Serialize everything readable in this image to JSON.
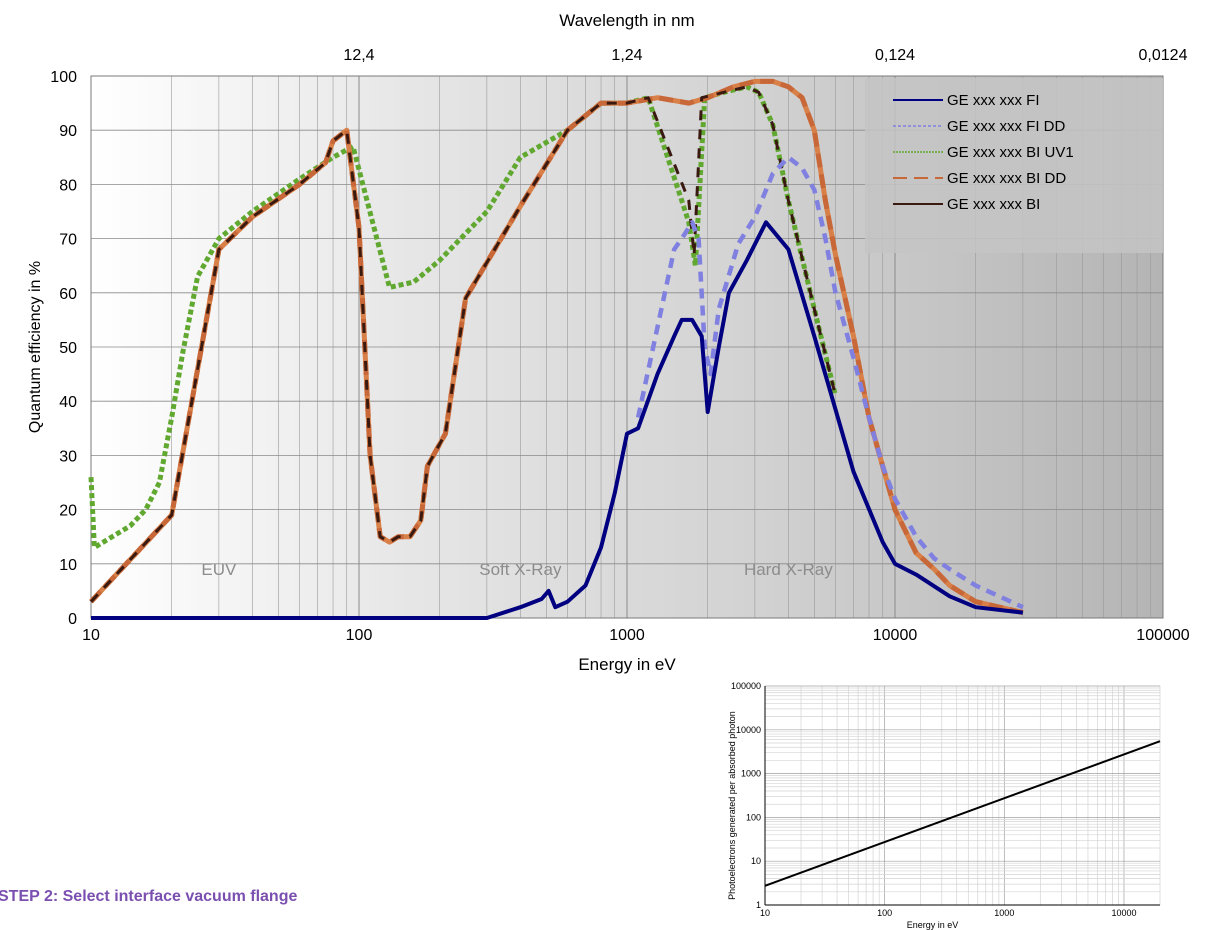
{
  "step_text": "STEP 2: Select interface vacuum flange",
  "chart_data": [
    {
      "type": "line",
      "title": "",
      "xlabel": "Energy in eV",
      "x2label": "Wavelength in nm",
      "ylabel": "Quantum efficiency  in %",
      "xscale": "log",
      "xlim": [
        10,
        100000
      ],
      "ylim": [
        0,
        100
      ],
      "xticks": [
        10,
        100,
        1000,
        10000,
        100000
      ],
      "xtick_labels": [
        "10",
        "100",
        "1000",
        "10000",
        "100000"
      ],
      "yticks": [
        0,
        10,
        20,
        30,
        40,
        50,
        60,
        70,
        80,
        90,
        100
      ],
      "ytick_labels": [
        "0",
        "10",
        "20",
        "30",
        "40",
        "50",
        "60",
        "70",
        "80",
        "90",
        "100"
      ],
      "x2ticks": [
        100,
        1000,
        10000,
        100000
      ],
      "x2tick_labels": [
        "12,4",
        "1,24",
        "0,124",
        "0,0124"
      ],
      "grid": true,
      "legend_position": "top-right",
      "regions": [
        {
          "label": "EUV",
          "x": 30
        },
        {
          "label": "Soft X-Ray",
          "x": 400
        },
        {
          "label": "Hard X-Ray",
          "x": 4000
        }
      ],
      "series": [
        {
          "name": "GE xxx xxx FI",
          "color": "#000080",
          "style": "solid",
          "points": [
            [
              10,
              0
            ],
            [
              300,
              0
            ],
            [
              400,
              2
            ],
            [
              480,
              3.5
            ],
            [
              510,
              5
            ],
            [
              540,
              2
            ],
            [
              600,
              3
            ],
            [
              700,
              6
            ],
            [
              800,
              13
            ],
            [
              900,
              23
            ],
            [
              1000,
              34
            ],
            [
              1100,
              35
            ],
            [
              1300,
              45
            ],
            [
              1500,
              52
            ],
            [
              1600,
              55
            ],
            [
              1750,
              55
            ],
            [
              1900,
              52
            ],
            [
              2000,
              38
            ],
            [
              2200,
              50
            ],
            [
              2400,
              60
            ],
            [
              2800,
              66
            ],
            [
              3300,
              73
            ],
            [
              4000,
              68
            ],
            [
              5000,
              52
            ],
            [
              7000,
              27
            ],
            [
              9000,
              14
            ],
            [
              10000,
              10
            ],
            [
              12000,
              8
            ],
            [
              16000,
              4
            ],
            [
              20000,
              2
            ],
            [
              30000,
              1
            ]
          ]
        },
        {
          "name": "GE xxx xxx FI DD",
          "color": "#8080e0",
          "style": "dashed",
          "points": [
            [
              1100,
              37
            ],
            [
              1500,
              68
            ],
            [
              1650,
              71
            ],
            [
              1750,
              73
            ],
            [
              1850,
              70
            ],
            [
              1950,
              50
            ],
            [
              2050,
              45
            ],
            [
              2200,
              57
            ],
            [
              2600,
              69
            ],
            [
              3000,
              74
            ],
            [
              3500,
              82
            ],
            [
              4000,
              85
            ],
            [
              4500,
              83
            ],
            [
              5000,
              79
            ],
            [
              5500,
              70
            ],
            [
              6000,
              60
            ],
            [
              7000,
              48
            ],
            [
              8000,
              37
            ],
            [
              9000,
              28
            ],
            [
              10000,
              22
            ],
            [
              12000,
              15
            ],
            [
              14000,
              11
            ],
            [
              16000,
              9
            ],
            [
              20000,
              6
            ],
            [
              30000,
              2
            ]
          ]
        },
        {
          "name": "GE xxx xxx BI UV1",
          "color": "#60a830",
          "style": "dotted",
          "points": [
            [
              10,
              26
            ],
            [
              10.3,
              13
            ],
            [
              12,
              15
            ],
            [
              14,
              17
            ],
            [
              16,
              20
            ],
            [
              18,
              25
            ],
            [
              20,
              37
            ],
            [
              22,
              49
            ],
            [
              25,
              63
            ],
            [
              30,
              70
            ],
            [
              40,
              75
            ],
            [
              60,
              81
            ],
            [
              80,
              85
            ],
            [
              95,
              87
            ],
            [
              130,
              61
            ],
            [
              160,
              62
            ],
            [
              200,
              66
            ],
            [
              300,
              75
            ],
            [
              400,
              85
            ],
            [
              600,
              90
            ],
            [
              800,
              95
            ],
            [
              1000,
              95
            ],
            [
              1200,
              96
            ],
            [
              1700,
              73
            ],
            [
              1800,
              65
            ],
            [
              1950,
              96
            ],
            [
              2300,
              97
            ],
            [
              2800,
              98
            ],
            [
              3100,
              97
            ],
            [
              3500,
              91
            ],
            [
              4000,
              77
            ],
            [
              5000,
              57
            ],
            [
              6000,
              41
            ]
          ]
        },
        {
          "name": "GE xxx xxx BI DD",
          "color": "#c86838",
          "style": "dashed",
          "points": [
            [
              10,
              3
            ],
            [
              20,
              19
            ],
            [
              30,
              68
            ],
            [
              40,
              74
            ],
            [
              60,
              80
            ],
            [
              75,
              84
            ],
            [
              80,
              88
            ],
            [
              90,
              90
            ],
            [
              100,
              72
            ],
            [
              110,
              30
            ],
            [
              120,
              15
            ],
            [
              130,
              14
            ],
            [
              140,
              15
            ],
            [
              155,
              15
            ],
            [
              170,
              18
            ],
            [
              180,
              28
            ],
            [
              210,
              34
            ],
            [
              250,
              59
            ],
            [
              400,
              76
            ],
            [
              600,
              90
            ],
            [
              800,
              95
            ],
            [
              1000,
              95
            ],
            [
              1300,
              96
            ],
            [
              1700,
              95
            ],
            [
              2000,
              96
            ],
            [
              2500,
              98
            ],
            [
              3000,
              99
            ],
            [
              3500,
              99
            ],
            [
              4000,
              98
            ],
            [
              4500,
              96
            ],
            [
              5000,
              90
            ],
            [
              5500,
              77
            ],
            [
              6000,
              67
            ],
            [
              7000,
              52
            ],
            [
              8000,
              37
            ],
            [
              9000,
              28
            ],
            [
              10000,
              20
            ],
            [
              12000,
              12
            ],
            [
              14000,
              9
            ],
            [
              16000,
              6
            ],
            [
              20000,
              3
            ],
            [
              30000,
              1
            ]
          ]
        },
        {
          "name": "GE xxx xxx BI",
          "color": "#3a1a10",
          "style": "solid",
          "points": [
            [
              10,
              3
            ],
            [
              20,
              19
            ],
            [
              30,
              68
            ],
            [
              40,
              74
            ],
            [
              60,
              80
            ],
            [
              75,
              84
            ],
            [
              80,
              88
            ],
            [
              90,
              90
            ],
            [
              100,
              72
            ],
            [
              110,
              30
            ],
            [
              120,
              15
            ],
            [
              130,
              14
            ],
            [
              140,
              15
            ],
            [
              155,
              15
            ],
            [
              170,
              18
            ],
            [
              180,
              28
            ],
            [
              210,
              34
            ],
            [
              250,
              59
            ],
            [
              400,
              76
            ],
            [
              600,
              90
            ],
            [
              800,
              95
            ],
            [
              1000,
              95
            ],
            [
              1200,
              96
            ],
            [
              1700,
              77
            ],
            [
              1780,
              67
            ],
            [
              1900,
              96
            ],
            [
              2300,
              97
            ],
            [
              2800,
              98
            ],
            [
              3100,
              97
            ],
            [
              3500,
              91
            ],
            [
              4000,
              77
            ],
            [
              5000,
              57
            ],
            [
              6000,
              41
            ]
          ]
        }
      ]
    },
    {
      "type": "line",
      "title": "",
      "xlabel": "Energy in eV",
      "ylabel": "Photoelectrons generated per absorbed photon",
      "xscale": "log",
      "yscale": "log",
      "xlim": [
        10,
        20000
      ],
      "ylim": [
        1,
        100000
      ],
      "xticks": [
        10,
        100,
        1000,
        10000
      ],
      "xtick_labels": [
        "10",
        "100",
        "1000",
        "10000"
      ],
      "yticks": [
        1,
        10,
        100,
        1000,
        10000,
        100000
      ],
      "ytick_labels": [
        "1",
        "10",
        "100",
        "1000",
        "10000",
        "100000"
      ],
      "grid": true,
      "series": [
        {
          "color": "#000000",
          "points": [
            [
              10,
              2.74
            ],
            [
              20000,
              5479
            ]
          ]
        }
      ]
    }
  ]
}
